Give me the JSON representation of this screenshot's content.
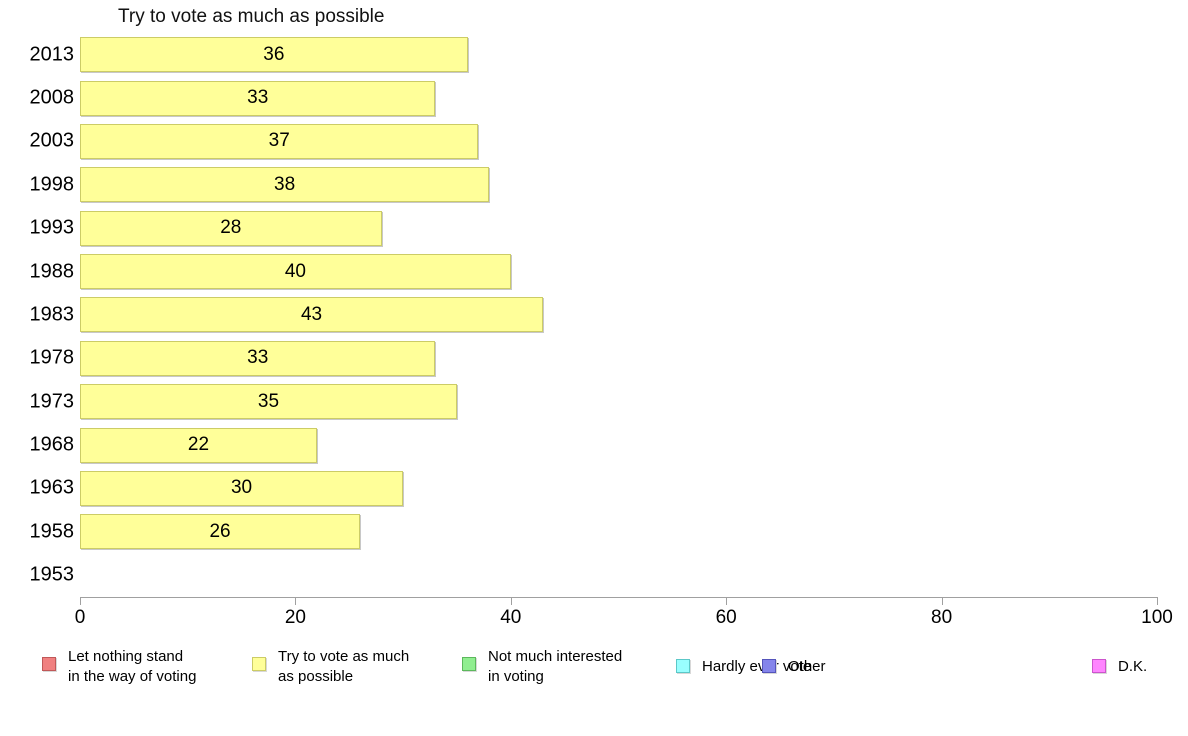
{
  "chart_data": {
    "type": "bar",
    "orientation": "horizontal",
    "title": "Try to vote as much as possible",
    "categories": [
      "2013",
      "2008",
      "2003",
      "1998",
      "1993",
      "1988",
      "1983",
      "1978",
      "1973",
      "1968",
      "1963",
      "1958",
      "1953"
    ],
    "values": [
      36,
      33,
      37,
      38,
      28,
      40,
      43,
      33,
      35,
      22,
      30,
      26,
      null
    ],
    "xlabel": "",
    "ylabel": "",
    "xlim": [
      0,
      100
    ],
    "x_ticks": [
      "0",
      "20",
      "40",
      "60",
      "80",
      "100"
    ],
    "grid": false,
    "legend_position": "bottom",
    "colors": {
      "bar_fill": "#FFFF99",
      "bar_border": "#CCCC66",
      "axis": "#A0A0A0",
      "text": "#000000"
    },
    "legend": [
      {
        "label": "Let nothing stand in the way of voting",
        "lines": [
          "Let nothing stand",
          "in the way of voting"
        ],
        "fill": "#F08080",
        "border": "#C05858"
      },
      {
        "label": "Try to vote as much as possible",
        "lines": [
          "Try to vote as much",
          "as possible"
        ],
        "fill": "#FFFF99",
        "border": "#CCCC66"
      },
      {
        "label": "Not much interested in voting",
        "lines": [
          "Not much interested",
          "in voting"
        ],
        "fill": "#90EE90",
        "border": "#5CB85C"
      },
      {
        "label": "Hardly ever vote",
        "lines": [
          "Hardly ever vote"
        ],
        "fill": "#99FFFF",
        "border": "#5CC8C8"
      },
      {
        "label": "Other",
        "lines": [
          "Other"
        ],
        "fill": "#8585EB",
        "border": "#5555BB"
      },
      {
        "label": "D.K.",
        "lines": [
          "D.K."
        ],
        "fill": "#FF85FF",
        "border": "#CC55CC"
      }
    ]
  }
}
